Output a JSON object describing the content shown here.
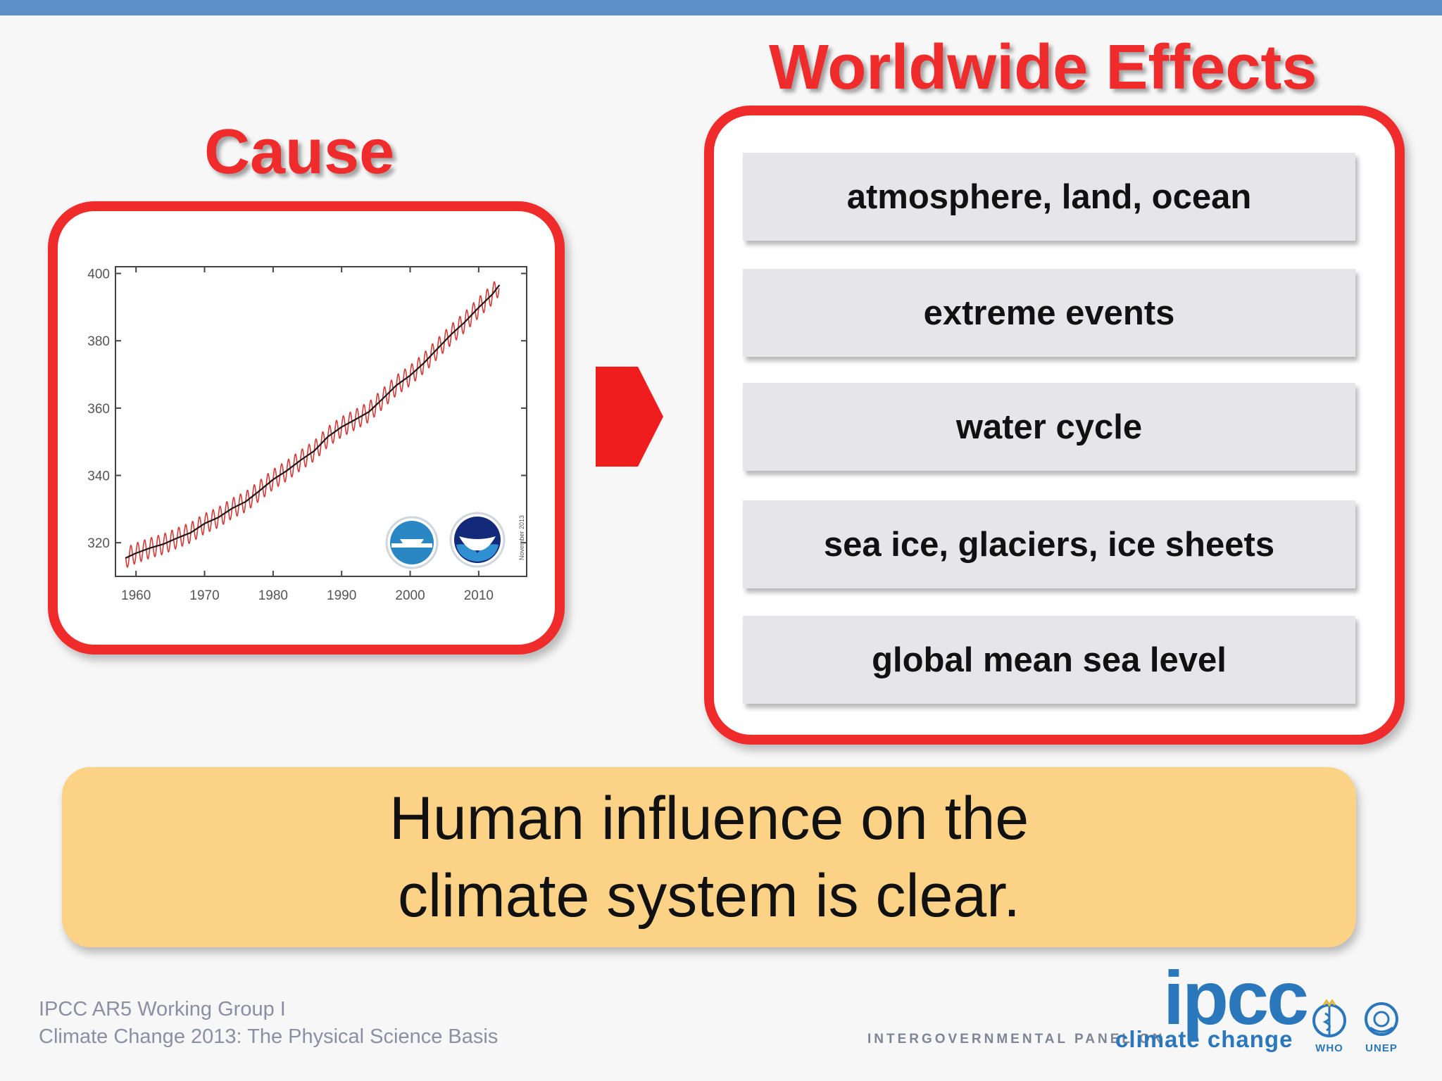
{
  "slide": {
    "cause_title": "Cause",
    "effects_title": "Worldwide Effects",
    "effects": [
      "atmosphere, land, ocean",
      "extreme events",
      "water cycle",
      "sea ice, glaciers, ice sheets",
      "global mean sea level"
    ],
    "conclusion": "Human influence on the climate system is clear.",
    "footer": {
      "line1": "IPCC AR5 Working Group I",
      "line2": "Climate Change 2013: The Physical Science Basis"
    },
    "logo": {
      "ipcc": "ipcc",
      "panel_text": "INTERGOVERNMENTAL PANEL ON",
      "climate_text": "climate change",
      "who": "WHO",
      "unep": "UNEP"
    },
    "colors": {
      "accent_red": "#ef2b2b",
      "top_bar": "#5b8fc6",
      "conclusion_bg": "#fcd287",
      "effect_bg": "#e6e6e8",
      "logo_blue": "#2a78bb"
    },
    "icons": {
      "arrow": "chevron-arrow-right",
      "agency_logos": [
        "scripps-logo",
        "noaa-logo"
      ]
    }
  },
  "chart_data": {
    "type": "line",
    "series": [
      {
        "x": [
          1958.5,
          1960,
          1962,
          1964,
          1966,
          1968,
          1970,
          1972,
          1974,
          1976,
          1978,
          1980,
          1982,
          1984,
          1986,
          1988,
          1990,
          1992,
          1994,
          1996,
          1998,
          2000,
          2002,
          2004,
          2006,
          2008,
          2010,
          2012,
          2013
        ],
        "y": [
          315.5,
          316.9,
          318.4,
          319.6,
          321.4,
          323.0,
          325.7,
          327.5,
          330.2,
          332.2,
          335.4,
          338.8,
          341.4,
          344.5,
          347.3,
          351.5,
          354.4,
          356.6,
          358.9,
          362.8,
          366.8,
          369.7,
          373.4,
          377.7,
          381.9,
          385.6,
          389.9,
          393.8,
          396.5
        ]
      }
    ],
    "seasonal_amplitude": 3,
    "xlim": [
      1957,
      2017
    ],
    "ylim": [
      310,
      402
    ],
    "x_ticks": [
      "1960",
      "1970",
      "1980",
      "1990",
      "2000",
      "2010"
    ],
    "y_ticks": [
      "320",
      "340",
      "360",
      "380",
      "400"
    ],
    "side_label": "November 2013",
    "title": "",
    "xlabel": "",
    "ylabel": "",
    "grid": false,
    "colors": {
      "monthly": "#d33a3a",
      "trend": "#1a1a1a"
    }
  }
}
